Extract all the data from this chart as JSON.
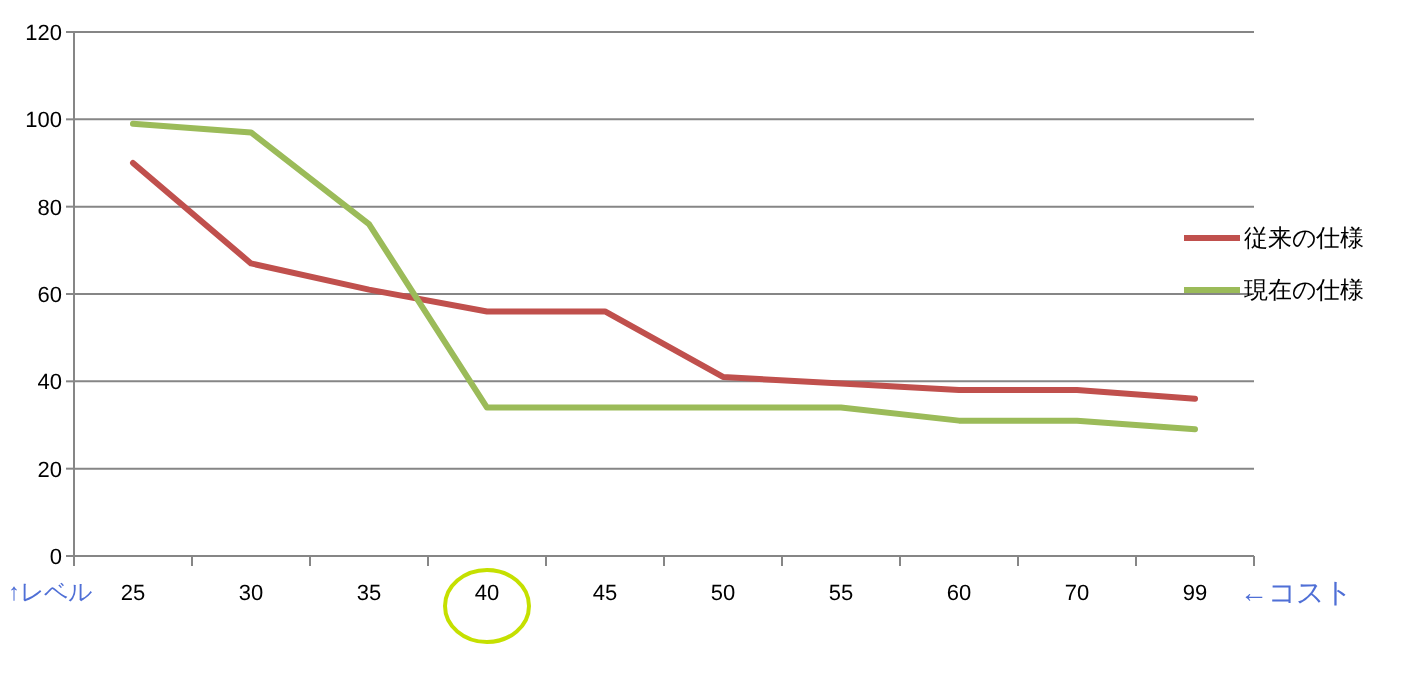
{
  "chart_data": {
    "type": "line",
    "categories": [
      "25",
      "30",
      "35",
      "40",
      "45",
      "50",
      "55",
      "60",
      "70",
      "99"
    ],
    "series": [
      {
        "name": "従来の仕様",
        "color": "#c0504d",
        "values": [
          90,
          67,
          61,
          56,
          56,
          41,
          39.5,
          38,
          38,
          36
        ]
      },
      {
        "name": "現在の仕様",
        "color": "#9bbb59",
        "values": [
          99,
          97,
          76,
          34,
          34,
          34,
          34,
          31,
          31,
          29
        ]
      }
    ],
    "ylim": [
      0,
      120
    ],
    "yticks": [
      0,
      20,
      40,
      60,
      80,
      100,
      120
    ],
    "grid": "y",
    "legend": "right",
    "marker": "none",
    "line_style": "solid",
    "annotations": [
      "↑レベル",
      "←コスト"
    ]
  }
}
